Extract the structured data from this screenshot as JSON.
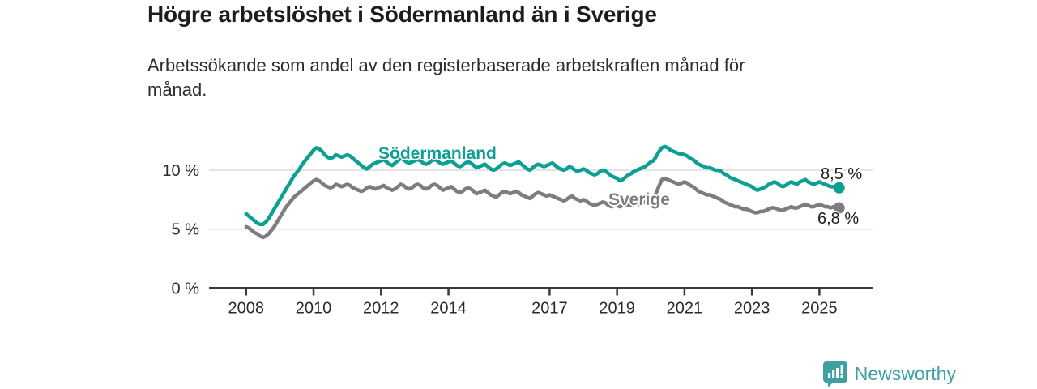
{
  "header": {
    "title": "Högre arbetslöshet i Södermanland än i Sverige",
    "subtitle_line1": "Arbetssökande som andel av den registerbaserade arbetskraften månad för",
    "subtitle_line2": "månad."
  },
  "footer": {
    "brand": "Newsworthy",
    "brand_color": "#3fa0a1",
    "logo_icon": "bar-chart-speech-bubble-icon"
  },
  "colors": {
    "accent_teal": "#0c9f93",
    "neutral_gray": "#7d7c82",
    "grid": "#dcdcdc",
    "axis": "#3a3a3e",
    "tick_text": "#2b2b2b"
  },
  "chart_data": {
    "type": "line",
    "title": "Högre arbetslöshet i Södermanland än i Sverige",
    "subtitle": "Arbetssökande som andel av den registerbaserade arbetskraften månad för månad.",
    "x_unit": "month",
    "x_start": 2008.0,
    "x_step": 0.0833333,
    "xlim": [
      2006.9,
      2026.6
    ],
    "ylim": [
      0,
      13.5
    ],
    "grid": "horizontal",
    "legend_position": "inline-labels",
    "x_tick_years": [
      2008,
      2010,
      2012,
      2014,
      2017,
      2019,
      2021,
      2023,
      2025
    ],
    "x_tick_labels": [
      "2008",
      "2010",
      "2012",
      "2014",
      "2017",
      "2019",
      "2021",
      "2023",
      "2025"
    ],
    "y_tick_values": [
      0,
      5,
      10
    ],
    "y_tick_labels": [
      "0 %",
      "5 %",
      "10 %"
    ],
    "series": [
      {
        "name": "Södermanland",
        "color": "#0c9f93",
        "end_label": "8,5 %",
        "end_value": 8.5,
        "values": [
          6.3,
          6.1,
          5.9,
          5.7,
          5.5,
          5.4,
          5.4,
          5.6,
          5.9,
          6.3,
          6.7,
          7.1,
          7.5,
          7.9,
          8.3,
          8.7,
          9.1,
          9.5,
          9.8,
          10.1,
          10.5,
          10.8,
          11.1,
          11.4,
          11.7,
          11.9,
          11.8,
          11.6,
          11.3,
          11.1,
          11.0,
          11.1,
          11.3,
          11.2,
          11.1,
          11.2,
          11.3,
          11.2,
          11.0,
          10.8,
          10.6,
          10.4,
          10.2,
          10.1,
          10.3,
          10.5,
          10.6,
          10.7,
          10.8,
          10.9,
          10.7,
          10.5,
          10.4,
          10.6,
          10.8,
          11.0,
          10.9,
          10.7,
          10.6,
          10.7,
          10.8,
          10.9,
          10.8,
          10.6,
          10.5,
          10.6,
          10.8,
          10.9,
          10.8,
          10.6,
          10.5,
          10.6,
          10.7,
          10.8,
          10.6,
          10.4,
          10.3,
          10.4,
          10.6,
          10.7,
          10.6,
          10.4,
          10.2,
          10.3,
          10.4,
          10.5,
          10.3,
          10.1,
          10.0,
          10.1,
          10.3,
          10.5,
          10.6,
          10.5,
          10.4,
          10.5,
          10.6,
          10.7,
          10.5,
          10.3,
          10.1,
          10.0,
          10.2,
          10.4,
          10.5,
          10.4,
          10.3,
          10.4,
          10.5,
          10.6,
          10.4,
          10.2,
          10.1,
          10.0,
          10.1,
          10.3,
          10.2,
          10.0,
          9.9,
          10.0,
          10.1,
          10.0,
          9.8,
          9.7,
          9.6,
          9.7,
          9.9,
          10.0,
          9.9,
          9.7,
          9.5,
          9.4,
          9.3,
          9.1,
          9.2,
          9.4,
          9.6,
          9.7,
          9.9,
          10.0,
          10.1,
          10.2,
          10.3,
          10.5,
          10.7,
          10.8,
          11.2,
          11.6,
          11.9,
          12.0,
          11.9,
          11.7,
          11.6,
          11.5,
          11.4,
          11.4,
          11.3,
          11.2,
          11.0,
          10.9,
          10.7,
          10.5,
          10.4,
          10.3,
          10.2,
          10.2,
          10.1,
          10.0,
          10.0,
          9.9,
          9.7,
          9.6,
          9.4,
          9.3,
          9.2,
          9.1,
          9.0,
          8.9,
          8.8,
          8.7,
          8.6,
          8.4,
          8.3,
          8.4,
          8.5,
          8.6,
          8.8,
          8.9,
          9.0,
          8.9,
          8.7,
          8.6,
          8.7,
          8.9,
          9.0,
          8.9,
          8.8,
          9.0,
          9.1,
          9.2,
          9.0,
          8.9,
          8.8,
          8.9,
          9.0,
          8.9,
          8.8,
          8.7,
          8.6,
          8.6,
          8.5,
          8.5
        ]
      },
      {
        "name": "Sverige",
        "color": "#7d7c82",
        "end_label": "6,8 %",
        "end_value": 6.8,
        "values": [
          5.2,
          5.1,
          4.9,
          4.7,
          4.6,
          4.4,
          4.3,
          4.4,
          4.6,
          4.9,
          5.2,
          5.6,
          6.0,
          6.4,
          6.8,
          7.1,
          7.4,
          7.7,
          7.9,
          8.1,
          8.3,
          8.5,
          8.7,
          8.9,
          9.1,
          9.2,
          9.1,
          8.9,
          8.7,
          8.6,
          8.5,
          8.6,
          8.8,
          8.7,
          8.6,
          8.7,
          8.8,
          8.7,
          8.5,
          8.4,
          8.3,
          8.2,
          8.3,
          8.5,
          8.6,
          8.5,
          8.4,
          8.5,
          8.6,
          8.7,
          8.5,
          8.4,
          8.3,
          8.4,
          8.6,
          8.8,
          8.7,
          8.5,
          8.4,
          8.5,
          8.7,
          8.8,
          8.7,
          8.5,
          8.4,
          8.5,
          8.7,
          8.8,
          8.7,
          8.5,
          8.3,
          8.4,
          8.5,
          8.6,
          8.4,
          8.2,
          8.1,
          8.2,
          8.4,
          8.5,
          8.4,
          8.2,
          8.0,
          8.1,
          8.2,
          8.3,
          8.1,
          7.9,
          7.8,
          7.7,
          7.9,
          8.1,
          8.2,
          8.1,
          8.0,
          8.1,
          8.2,
          8.1,
          7.9,
          7.8,
          7.7,
          7.6,
          7.8,
          8.0,
          8.1,
          8.0,
          7.9,
          7.8,
          7.9,
          7.8,
          7.7,
          7.6,
          7.5,
          7.4,
          7.5,
          7.7,
          7.8,
          7.6,
          7.5,
          7.4,
          7.5,
          7.4,
          7.2,
          7.1,
          7.0,
          7.1,
          7.2,
          7.3,
          7.2,
          7.0,
          6.9,
          7.0,
          7.0,
          6.9,
          7.0,
          7.0,
          7.1,
          7.0,
          7.1,
          7.2,
          7.1,
          7.2,
          7.3,
          7.4,
          7.5,
          7.6,
          8.1,
          8.7,
          9.2,
          9.3,
          9.2,
          9.1,
          9.0,
          8.9,
          8.8,
          8.9,
          9.0,
          8.9,
          8.7,
          8.6,
          8.4,
          8.2,
          8.1,
          8.0,
          7.9,
          7.9,
          7.8,
          7.7,
          7.6,
          7.5,
          7.3,
          7.2,
          7.1,
          7.0,
          6.9,
          6.9,
          6.8,
          6.7,
          6.7,
          6.6,
          6.5,
          6.4,
          6.4,
          6.5,
          6.5,
          6.6,
          6.7,
          6.8,
          6.8,
          6.7,
          6.6,
          6.6,
          6.7,
          6.8,
          6.9,
          6.8,
          6.8,
          6.9,
          7.0,
          7.1,
          7.0,
          6.9,
          6.9,
          7.0,
          7.1,
          7.0,
          6.9,
          6.9,
          6.8,
          6.9,
          6.8,
          6.8
        ]
      }
    ]
  }
}
